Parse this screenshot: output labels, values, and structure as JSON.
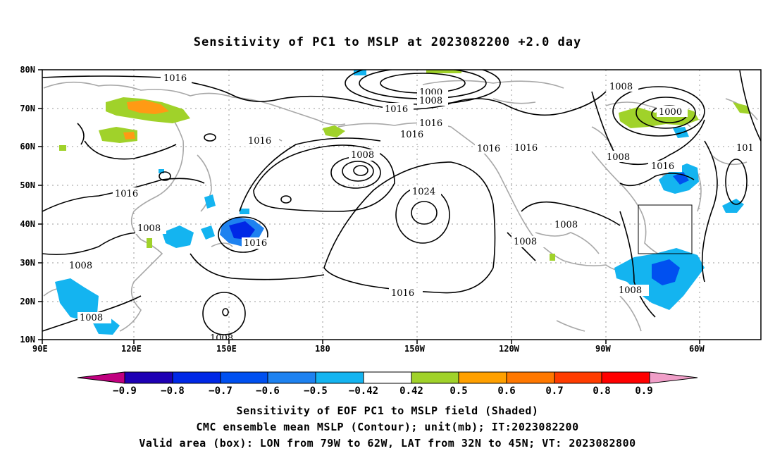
{
  "title": "Sensitivity of PC1 to MSLP at 2023082200 +2.0 day",
  "captions": [
    "Sensitivity of EOF PC1 to MSLP field (Shaded)",
    "CMC ensemble mean MSLP (Contour); unit(mb); IT:2023082200",
    "Valid area (box): LON from 79W to 62W, LAT from 32N to 45N; VT: 2023082800"
  ],
  "map": {
    "lon_labels": [
      "90E",
      "120E",
      "150E",
      "180",
      "150W",
      "120W",
      "90W",
      "60W"
    ],
    "lat_labels": [
      "80N",
      "70N",
      "60N",
      "50N",
      "40N",
      "30N",
      "20N",
      "10N"
    ],
    "valid_box": {
      "lon_from": "79W",
      "lon_to": "62W",
      "lat_from": "32N",
      "lat_to": "45N"
    }
  },
  "contour_labels": [
    "1016",
    "1000",
    "1008",
    "1016",
    "1016",
    "1008",
    "1000",
    "1016",
    "1016",
    "1016",
    "1016",
    "101",
    "1008",
    "1008",
    "1016",
    "1016",
    "1024",
    "1008",
    "1008",
    "1016",
    "1008",
    "1016",
    "1008",
    "1008",
    "1008"
  ],
  "colorbar": {
    "tick_labels": [
      "−0.9",
      "−0.8",
      "−0.7",
      "−0.6",
      "−0.5",
      "−0.42",
      "0.42",
      "0.5",
      "0.6",
      "0.7",
      "0.8",
      "0.9"
    ],
    "colors": [
      "#c0007f",
      "#1e00b4",
      "#0028e6",
      "#0050f0",
      "#1e82f0",
      "#14b4f0",
      "#00d2f5",
      "#ffffff",
      "#a0d22a",
      "#ffa000",
      "#ff7800",
      "#ff3c00",
      "#ff0000",
      "#f09ec8"
    ]
  },
  "colors": {
    "grid": "#9a9a9a",
    "coast": "#a8a8a8",
    "contour": "#000000",
    "blue_shade": "#14b4f0",
    "deep_blue": "#0050f0",
    "green_shade": "#a0d22a",
    "orange_shade": "#ff9a14"
  }
}
